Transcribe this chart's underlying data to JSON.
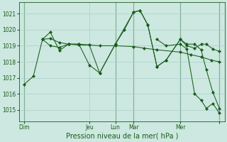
{
  "title": "",
  "xlabel": "Pression niveau de la mer( hPa )",
  "background_color": "#cce8e0",
  "plot_bg_color": "#cce8e0",
  "grid_color": "#aacfc8",
  "line_color": "#1a5c1a",
  "marker_color": "#1a5c1a",
  "ylim": [
    1014.3,
    1021.7
  ],
  "xlim": [
    -0.2,
    7.7
  ],
  "yticks": [
    1015,
    1016,
    1017,
    1018,
    1019,
    1020,
    1021
  ],
  "ytick_labels": [
    "1015",
    "1016",
    "1017",
    "1018",
    "1019",
    "1020",
    "1021"
  ],
  "xtick_positions": [
    0.0,
    2.5,
    3.5,
    4.2,
    6.0,
    7.5
  ],
  "xtick_labels": [
    "Dim",
    "Jeu",
    "Lun",
    "Mar",
    "Mer",
    ""
  ],
  "vlines_x": [
    0.0,
    3.5,
    4.2,
    6.0,
    7.5
  ],
  "series": [
    {
      "x": [
        0.0,
        0.35,
        0.7,
        1.0,
        1.35,
        1.7,
        2.1,
        2.5,
        2.9,
        3.5,
        4.2,
        4.6,
        5.1,
        6.0,
        6.4,
        6.8,
        7.2,
        7.5
      ],
      "y": [
        1016.6,
        1017.1,
        1019.4,
        1019.45,
        1019.2,
        1019.1,
        1019.1,
        1019.05,
        1019.0,
        1019.0,
        1018.95,
        1018.85,
        1018.75,
        1018.6,
        1018.45,
        1018.3,
        1018.1,
        1018.0
      ]
    },
    {
      "x": [
        0.7,
        1.0,
        1.35,
        1.7,
        2.1,
        2.5,
        2.9,
        3.5,
        3.85,
        4.2,
        4.45,
        4.75,
        5.1,
        5.45,
        6.0,
        6.25,
        6.55,
        6.8,
        7.0,
        7.25,
        7.5
      ],
      "y": [
        1019.4,
        1019.85,
        1018.7,
        1019.1,
        1019.05,
        1019.05,
        1017.3,
        1019.1,
        1020.0,
        1021.1,
        1021.2,
        1020.3,
        1017.7,
        1018.1,
        1019.4,
        1019.0,
        1018.85,
        1019.1,
        1019.1,
        1018.8,
        1018.65
      ]
    },
    {
      "x": [
        0.7,
        1.0,
        1.35,
        1.7,
        2.1,
        2.5,
        2.9,
        3.5,
        4.2,
        4.45,
        4.75,
        5.1,
        5.45,
        6.0,
        6.25,
        6.55,
        6.8,
        7.0,
        7.25,
        7.5
      ],
      "y": [
        1019.4,
        1019.0,
        1018.9,
        1019.1,
        1019.1,
        1017.8,
        1017.3,
        1019.1,
        1021.1,
        1021.2,
        1020.3,
        1017.7,
        1018.1,
        1019.4,
        1019.1,
        1019.1,
        1018.75,
        1017.5,
        1016.1,
        1015.1
      ]
    },
    {
      "x": [
        5.1,
        5.45,
        6.0,
        6.25,
        6.55,
        6.8,
        7.0,
        7.25,
        7.5
      ],
      "y": [
        1019.4,
        1019.0,
        1019.1,
        1018.8,
        1016.0,
        1015.6,
        1015.1,
        1015.4,
        1014.8
      ]
    }
  ]
}
